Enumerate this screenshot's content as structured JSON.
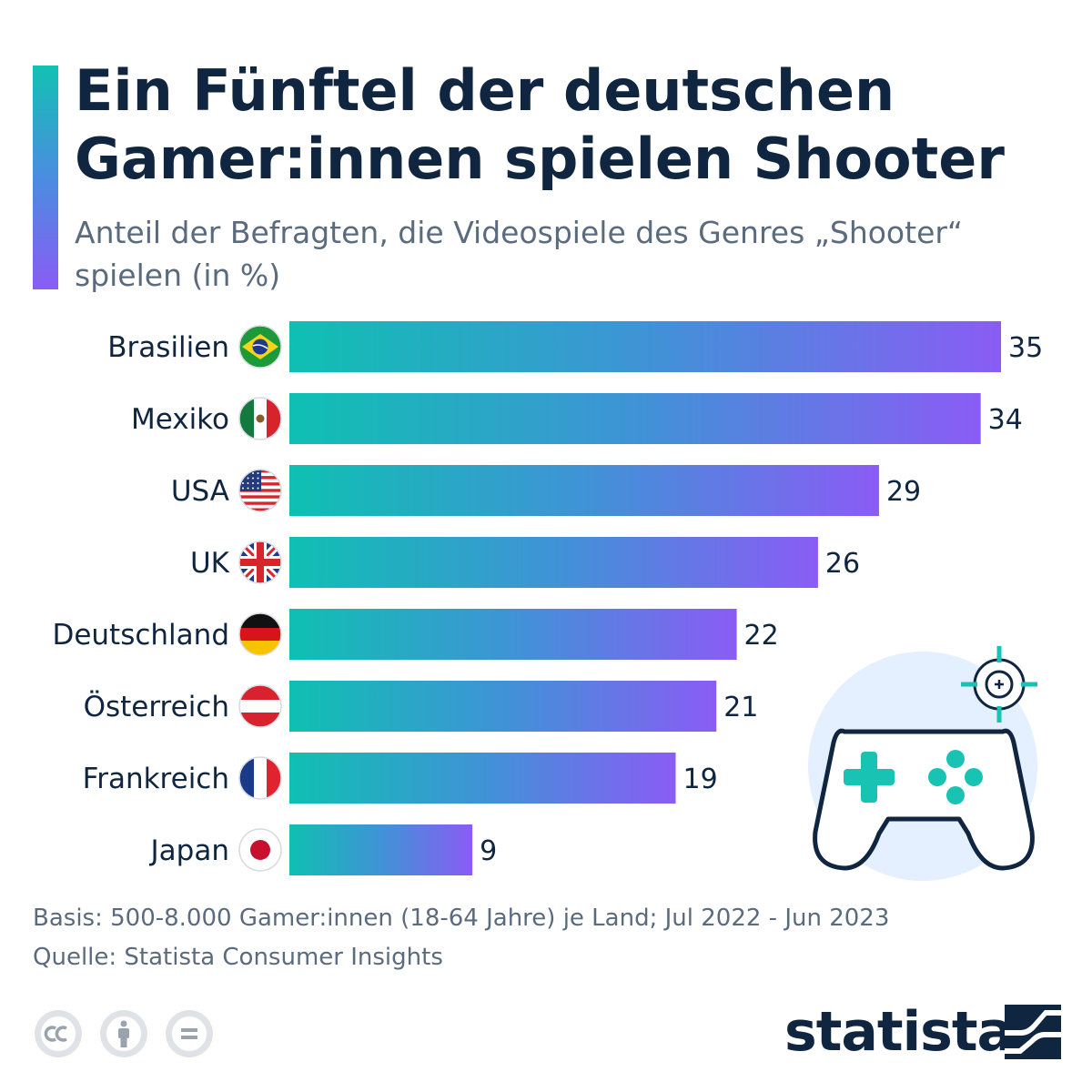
{
  "header": {
    "title": "Ein Fünftel der deutschen Gamer:innen spielen Shooter",
    "subtitle": "Anteil der Befragten, die Videospiele des Genres „Shooter“ spielen (in %)"
  },
  "chart_data": {
    "type": "bar",
    "orientation": "horizontal",
    "categories": [
      "Brasilien",
      "Mexiko",
      "USA",
      "UK",
      "Deutschland",
      "Österreich",
      "Frankreich",
      "Japan"
    ],
    "values": [
      35,
      34,
      29,
      26,
      22,
      21,
      19,
      9
    ],
    "flags": [
      "flag-brazil-icon",
      "flag-mexico-icon",
      "flag-usa-icon",
      "flag-uk-icon",
      "flag-germany-icon",
      "flag-austria-icon",
      "flag-france-icon",
      "flag-japan-icon"
    ],
    "xlim": [
      0,
      35
    ],
    "grid": false,
    "bar_gradient": [
      "#0fc0b2",
      "#8a5cf5"
    ]
  },
  "footer": {
    "basis": "Basis: 500-8.000 Gamer:innen (18-64 Jahre) je Land; Jul 2022 - Jun 2023",
    "source": "Quelle: Statista Consumer Insights"
  },
  "brand": {
    "name": "statista"
  },
  "icons": {
    "license": [
      "cc-icon",
      "attribution-icon",
      "no-derivatives-icon"
    ],
    "illustration": [
      "gamepad-icon",
      "crosshair-icon"
    ]
  },
  "colors": {
    "title": "#0f2540",
    "subtitle": "#5b6b7e",
    "accent_top": "#12c1b4",
    "accent_bottom": "#8a5cf5"
  }
}
